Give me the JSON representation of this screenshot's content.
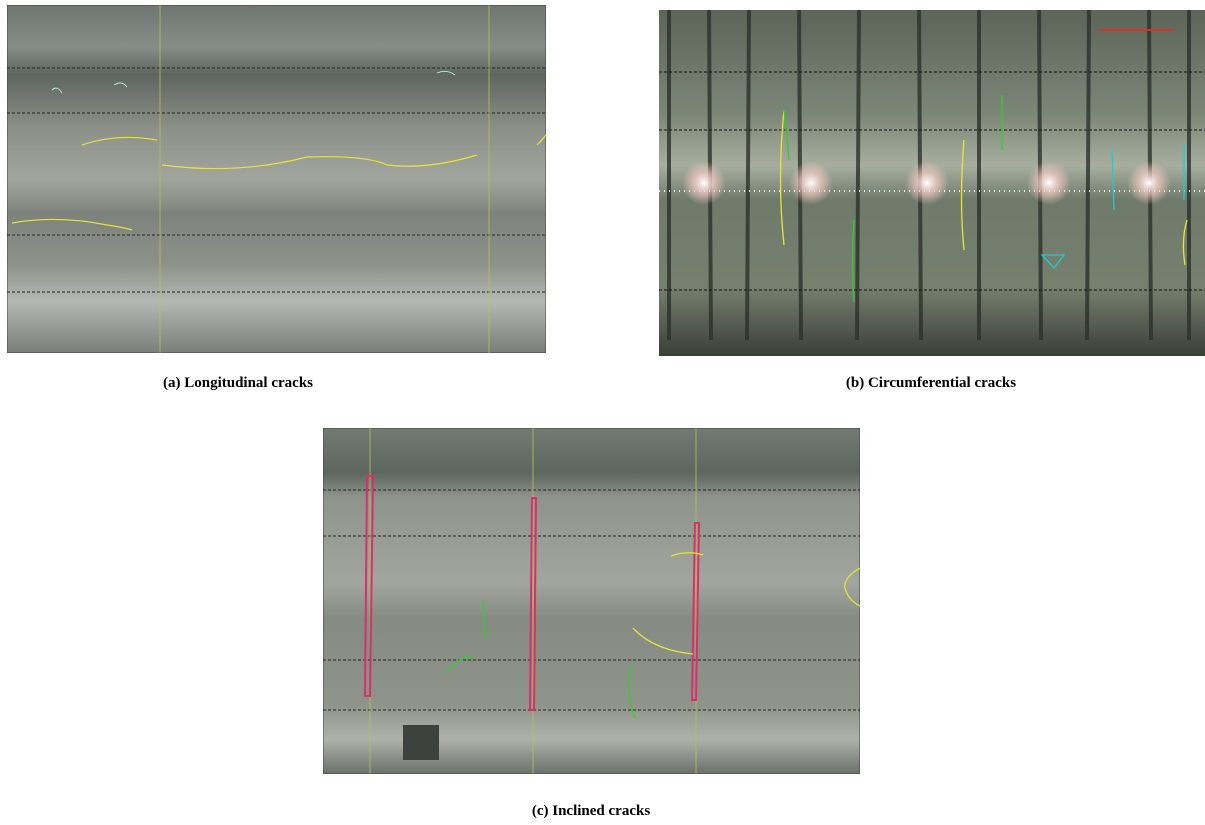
{
  "figure": {
    "panels": [
      {
        "caption": "(a)  Longitudinal cracks"
      },
      {
        "caption": "(b) Circumferential cracks"
      },
      {
        "caption": "(c) Inclined cracks"
      }
    ]
  }
}
